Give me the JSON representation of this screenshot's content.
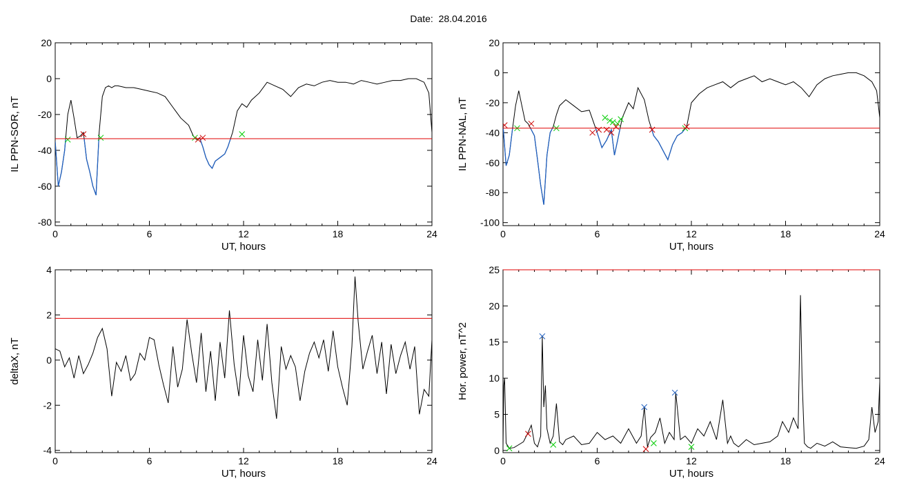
{
  "title": "Date:  28.04.2016",
  "colors": {
    "trace": "#000000",
    "below": "#1f5fbf",
    "threshold": "#e00000",
    "start": "#00cc00",
    "end": "#cc0000",
    "peak": "#1f5fbf"
  },
  "chart_data": [
    {
      "type": "line",
      "xlabel": "UT, hours",
      "ylabel": "IL PPN-SOR, nT",
      "xlim": [
        0,
        24
      ],
      "ylim": [
        -82,
        20
      ],
      "xticks": [
        0,
        6,
        12,
        18,
        24
      ],
      "yticks": [
        -80,
        -60,
        -40,
        -20,
        0,
        20
      ],
      "threshold": -33.5,
      "highlight_below": true,
      "series": [
        {
          "x": [
            0,
            0.2,
            0.4,
            0.6,
            0.8,
            1.0,
            1.2,
            1.4,
            1.6,
            1.8,
            2.0,
            2.2,
            2.4,
            2.6,
            2.8,
            3.0,
            3.2,
            3.4,
            3.6,
            3.8,
            4.0,
            4.5,
            5.0,
            5.5,
            6.0,
            6.5,
            7.0,
            7.5,
            8.0,
            8.5,
            8.8,
            9.0,
            9.2,
            9.4,
            9.6,
            9.8,
            10.0,
            10.2,
            10.5,
            10.8,
            11.0,
            11.3,
            11.6,
            11.9,
            12.2,
            12.5,
            13.0,
            13.5,
            14.0,
            14.5,
            15.0,
            15.5,
            16.0,
            16.5,
            17.0,
            17.5,
            18.0,
            18.5,
            19.0,
            19.5,
            20.0,
            20.5,
            21.0,
            21.5,
            22.0,
            22.5,
            23.0,
            23.5,
            23.8,
            24.0
          ],
          "y": [
            -35,
            -60,
            -52,
            -40,
            -20,
            -12,
            -22,
            -33,
            -32,
            -30,
            -45,
            -52,
            -60,
            -65,
            -30,
            -10,
            -5,
            -4,
            -5,
            -4,
            -4,
            -5,
            -5,
            -6,
            -7,
            -8,
            -10,
            -16,
            -22,
            -26,
            -32,
            -34,
            -33,
            -38,
            -44,
            -48,
            -50,
            -46,
            -44,
            -42,
            -38,
            -30,
            -18,
            -14,
            -16,
            -12,
            -8,
            -2,
            -4,
            -6,
            -10,
            -5,
            -3,
            -4,
            -2,
            -1,
            -2,
            -2,
            -3,
            -1,
            -2,
            -3,
            -2,
            -1,
            -1,
            0,
            0,
            -2,
            -8,
            -30
          ]
        }
      ],
      "markers_start": [
        {
          "x": 0.8,
          "y": -34
        },
        {
          "x": 2.9,
          "y": -33
        },
        {
          "x": 8.9,
          "y": -33
        },
        {
          "x": 11.9,
          "y": -31
        }
      ],
      "markers_end": [
        {
          "x": 1.8,
          "y": -31
        },
        {
          "x": 9.1,
          "y": -34
        },
        {
          "x": 9.4,
          "y": -33
        }
      ]
    },
    {
      "type": "line",
      "xlabel": "UT, hours",
      "ylabel": "IL PPN-NAL, nT",
      "xlim": [
        0,
        24
      ],
      "ylim": [
        -102,
        20
      ],
      "xticks": [
        0,
        6,
        12,
        18,
        24
      ],
      "yticks": [
        -100,
        -80,
        -60,
        -40,
        -20,
        0,
        20
      ],
      "threshold": -37,
      "highlight_below": true,
      "series": [
        {
          "x": [
            0,
            0.2,
            0.4,
            0.6,
            0.8,
            1.0,
            1.2,
            1.4,
            1.6,
            1.8,
            2.0,
            2.2,
            2.4,
            2.6,
            2.8,
            3.0,
            3.2,
            3.4,
            3.6,
            3.8,
            4.0,
            4.5,
            5.0,
            5.5,
            6.0,
            6.3,
            6.6,
            6.9,
            7.1,
            7.3,
            7.6,
            8.0,
            8.3,
            8.6,
            9.0,
            9.3,
            9.6,
            9.9,
            10.2,
            10.5,
            10.8,
            11.1,
            11.4,
            11.7,
            12.0,
            12.5,
            13.0,
            13.5,
            14.0,
            14.5,
            15.0,
            15.5,
            16.0,
            16.5,
            17.0,
            17.5,
            18.0,
            18.5,
            19.0,
            19.5,
            20.0,
            20.5,
            21.0,
            21.5,
            22.0,
            22.5,
            23.0,
            23.5,
            23.8,
            24.0
          ],
          "y": [
            -35,
            -62,
            -55,
            -38,
            -22,
            -12,
            -22,
            -32,
            -34,
            -38,
            -42,
            -58,
            -75,
            -88,
            -55,
            -40,
            -36,
            -28,
            -22,
            -20,
            -18,
            -22,
            -26,
            -25,
            -40,
            -50,
            -45,
            -38,
            -55,
            -45,
            -30,
            -20,
            -24,
            -10,
            -18,
            -32,
            -42,
            -46,
            -52,
            -58,
            -48,
            -42,
            -40,
            -36,
            -20,
            -14,
            -10,
            -8,
            -6,
            -10,
            -6,
            -4,
            -2,
            -6,
            -4,
            -6,
            -8,
            -6,
            -10,
            -16,
            -8,
            -4,
            -2,
            -1,
            0,
            0,
            -2,
            -6,
            -12,
            -30
          ]
        }
      ],
      "markers_start": [
        {
          "x": 0.9,
          "y": -37
        },
        {
          "x": 3.4,
          "y": -37
        },
        {
          "x": 6.5,
          "y": -30
        },
        {
          "x": 6.8,
          "y": -32
        },
        {
          "x": 7.0,
          "y": -33
        },
        {
          "x": 7.3,
          "y": -34
        },
        {
          "x": 7.5,
          "y": -31
        },
        {
          "x": 11.6,
          "y": -37
        }
      ],
      "markers_end": [
        {
          "x": 0.1,
          "y": -35
        },
        {
          "x": 1.8,
          "y": -34
        },
        {
          "x": 5.7,
          "y": -40
        },
        {
          "x": 6.1,
          "y": -38
        },
        {
          "x": 6.6,
          "y": -38
        },
        {
          "x": 6.9,
          "y": -40
        },
        {
          "x": 7.2,
          "y": -36
        },
        {
          "x": 9.5,
          "y": -38
        },
        {
          "x": 11.7,
          "y": -36
        }
      ]
    },
    {
      "type": "line",
      "xlabel": "UT, hours",
      "ylabel": "deltaX, nT",
      "xlim": [
        0,
        24
      ],
      "ylim": [
        -4.1,
        4
      ],
      "xticks": [
        0,
        6,
        12,
        18,
        24
      ],
      "yticks": [
        -4,
        -2,
        0,
        2,
        4
      ],
      "threshold": 1.85,
      "highlight_below": false,
      "series": [
        {
          "x": [
            0,
            0.3,
            0.6,
            0.9,
            1.2,
            1.5,
            1.8,
            2.1,
            2.4,
            2.7,
            3.0,
            3.3,
            3.6,
            3.9,
            4.2,
            4.5,
            4.8,
            5.1,
            5.4,
            5.7,
            6.0,
            6.3,
            6.6,
            6.9,
            7.2,
            7.5,
            7.8,
            8.1,
            8.4,
            8.7,
            9.0,
            9.3,
            9.6,
            9.9,
            10.2,
            10.5,
            10.8,
            11.1,
            11.4,
            11.7,
            12.0,
            12.3,
            12.6,
            12.9,
            13.2,
            13.5,
            13.8,
            14.1,
            14.4,
            14.7,
            15.0,
            15.3,
            15.6,
            15.9,
            16.2,
            16.5,
            16.8,
            17.1,
            17.4,
            17.7,
            18.0,
            18.3,
            18.6,
            18.9,
            19.1,
            19.3,
            19.6,
            19.9,
            20.2,
            20.5,
            20.8,
            21.1,
            21.4,
            21.7,
            22.0,
            22.3,
            22.6,
            22.9,
            23.2,
            23.5,
            23.8,
            24.0
          ],
          "y": [
            0.5,
            0.4,
            -0.3,
            0.1,
            -0.8,
            0.2,
            -0.6,
            -0.2,
            0.3,
            1.0,
            1.4,
            0.5,
            -1.6,
            -0.1,
            -0.5,
            0.2,
            -0.9,
            -0.6,
            0.3,
            0.0,
            1.0,
            0.9,
            -0.2,
            -1.1,
            -1.9,
            0.6,
            -1.2,
            -0.4,
            1.8,
            0.3,
            -1.0,
            1.2,
            -1.4,
            0.4,
            -1.8,
            0.8,
            -0.8,
            2.2,
            -0.2,
            -1.6,
            1.1,
            -0.7,
            -1.4,
            0.9,
            -0.9,
            1.6,
            -1.0,
            -2.6,
            0.6,
            -0.4,
            0.2,
            -0.3,
            -1.8,
            -0.5,
            0.3,
            0.8,
            0.1,
            0.9,
            -0.5,
            1.3,
            -0.3,
            -1.2,
            -2.0,
            0.6,
            3.7,
            1.7,
            -0.4,
            0.4,
            1.1,
            -0.6,
            0.8,
            -1.5,
            0.7,
            -0.6,
            0.2,
            0.8,
            -0.4,
            0.6,
            -2.4,
            -1.3,
            -1.6,
            0.9
          ]
        }
      ],
      "markers_start": [],
      "markers_end": []
    },
    {
      "type": "line",
      "xlabel": "UT, hours",
      "ylabel": "Hor. power, nT^2",
      "xlim": [
        0,
        24
      ],
      "ylim": [
        -0.3,
        25
      ],
      "xticks": [
        0,
        6,
        12,
        18,
        24
      ],
      "yticks": [
        0,
        5,
        10,
        15,
        20,
        25
      ],
      "threshold": 25,
      "highlight_below": false,
      "series": [
        {
          "x": [
            0,
            0.05,
            0.1,
            0.2,
            0.4,
            0.7,
            1.0,
            1.3,
            1.6,
            1.8,
            2.0,
            2.2,
            2.4,
            2.5,
            2.6,
            2.7,
            2.8,
            3.0,
            3.2,
            3.4,
            3.6,
            3.8,
            4.0,
            4.5,
            5.0,
            5.5,
            6.0,
            6.5,
            7.0,
            7.5,
            8.0,
            8.5,
            8.8,
            9.0,
            9.2,
            9.4,
            9.7,
            10.0,
            10.3,
            10.6,
            10.9,
            11.0,
            11.1,
            11.3,
            11.6,
            12.0,
            12.4,
            12.8,
            13.2,
            13.6,
            14.0,
            14.3,
            14.5,
            14.7,
            15.0,
            15.5,
            16.0,
            16.5,
            17.0,
            17.5,
            17.8,
            18.2,
            18.5,
            18.8,
            18.95,
            19.05,
            19.2,
            19.4,
            19.6,
            20.0,
            20.5,
            21.0,
            21.5,
            22.0,
            22.5,
            23.0,
            23.3,
            23.5,
            23.7,
            23.9,
            24.0
          ],
          "y": [
            0.5,
            9.0,
            10.0,
            1.0,
            0.3,
            0.4,
            0.8,
            1.2,
            2.5,
            3.5,
            1.0,
            0.5,
            2.0,
            15.8,
            6.0,
            9.0,
            3.0,
            1.0,
            2.0,
            6.5,
            1.2,
            0.8,
            1.5,
            2.0,
            0.8,
            1.0,
            2.5,
            1.5,
            2.0,
            1.0,
            3.0,
            1.0,
            2.0,
            6.0,
            0.5,
            1.8,
            2.5,
            4.5,
            1.0,
            2.5,
            1.5,
            8.0,
            6.0,
            1.5,
            2.0,
            1.0,
            3.0,
            2.0,
            4.0,
            1.5,
            7.0,
            1.0,
            2.0,
            1.0,
            0.5,
            1.5,
            0.8,
            1.0,
            1.2,
            2.0,
            4.0,
            2.5,
            4.5,
            3.0,
            21.5,
            10.0,
            1.0,
            0.5,
            0.3,
            1.0,
            0.6,
            1.2,
            0.5,
            0.4,
            0.3,
            0.6,
            1.5,
            6.0,
            2.5,
            4.0,
            9.5
          ]
        }
      ],
      "markers_start": [
        {
          "x": 0.4,
          "y": 0.3
        },
        {
          "x": 3.2,
          "y": 0.8
        },
        {
          "x": 9.6,
          "y": 1.0
        },
        {
          "x": 12.0,
          "y": 0.5
        }
      ],
      "markers_end": [
        {
          "x": 1.6,
          "y": 2.3
        },
        {
          "x": 9.1,
          "y": 0.2
        }
      ],
      "markers_peak": [
        {
          "x": 2.5,
          "y": 15.8
        },
        {
          "x": 9.0,
          "y": 6.0
        },
        {
          "x": 10.95,
          "y": 8.0
        }
      ]
    }
  ]
}
